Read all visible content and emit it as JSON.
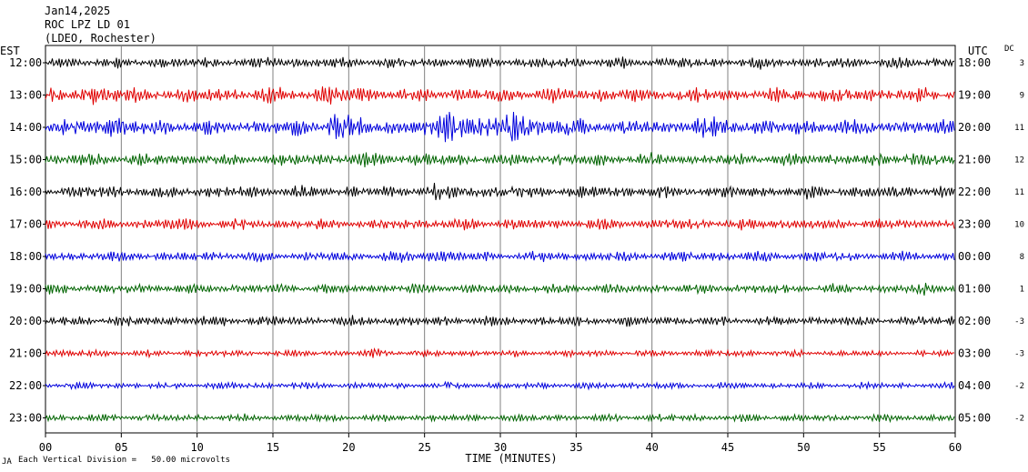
{
  "header": {
    "date": "Jan14,2025",
    "station": "ROC LPZ LD 01",
    "network": "(LDEO, Rochester)"
  },
  "left_tz": "EST",
  "right_tz": "UTC",
  "dc_header": "DC",
  "footer": {
    "corner": "JA",
    "scale": "Each Vertical Division =   50.00 microvolts"
  },
  "chart_data": {
    "type": "line",
    "xlabel": "TIME (MINUTES)",
    "xlim": [
      0,
      60
    ],
    "x_ticks": [
      "00",
      "05",
      "10",
      "15",
      "20",
      "25",
      "30",
      "35",
      "40",
      "45",
      "50",
      "55",
      "60"
    ],
    "colors": [
      "#000000",
      "#e00000",
      "#0000dd",
      "#006400"
    ],
    "rows": [
      {
        "est": "12:00",
        "utc": "18:00",
        "dc": "3",
        "amp": 0.9,
        "events": [
          [
            14.6,
            1.3
          ],
          [
            24.5,
            0.9
          ],
          [
            31.5,
            0.9
          ]
        ]
      },
      {
        "est": "13:00",
        "utc": "19:00",
        "dc": "9",
        "amp": 1.2,
        "events": [
          [
            2.8,
            2.1
          ],
          [
            18.2,
            1.7
          ],
          [
            28.5,
            1.0
          ],
          [
            36.5,
            1.2
          ]
        ]
      },
      {
        "est": "14:00",
        "utc": "20:00",
        "dc": "11",
        "amp": 1.3,
        "events": [
          [
            3.5,
            2.0
          ],
          [
            18.9,
            3.0
          ],
          [
            26.5,
            4.0
          ],
          [
            30.5,
            3.0
          ],
          [
            43.0,
            1.8
          ]
        ]
      },
      {
        "est": "15:00",
        "utc": "21:00",
        "dc": "12",
        "amp": 1.0,
        "events": [
          [
            20.6,
            1.6
          ],
          [
            25.7,
            1.1
          ],
          [
            56.8,
            1.5
          ]
        ]
      },
      {
        "est": "16:00",
        "utc": "22:00",
        "dc": "11",
        "amp": 1.0,
        "events": [
          [
            20.2,
            1.1
          ],
          [
            25.6,
            1.6
          ],
          [
            56.8,
            1.1
          ]
        ]
      },
      {
        "est": "17:00",
        "utc": "23:00",
        "dc": "10",
        "amp": 0.9,
        "events": [
          [
            8.0,
            1.3
          ],
          [
            25.0,
            1.2
          ],
          [
            35.0,
            1.1
          ]
        ]
      },
      {
        "est": "18:00",
        "utc": "00:00",
        "dc": "8",
        "amp": 0.8,
        "events": [
          [
            10.5,
            1.0
          ],
          [
            22.7,
            1.3
          ],
          [
            25.0,
            1.9
          ],
          [
            46.2,
            1.2
          ]
        ]
      },
      {
        "est": "19:00",
        "utc": "01:00",
        "dc": "1",
        "amp": 0.8,
        "events": [
          [
            20.0,
            1.0
          ],
          [
            57.5,
            1.5
          ]
        ]
      },
      {
        "est": "20:00",
        "utc": "02:00",
        "dc": "-3",
        "amp": 0.8,
        "events": [
          [
            11.8,
            1.1
          ],
          [
            28.3,
            1.0
          ],
          [
            59.8,
            1.2
          ]
        ]
      },
      {
        "est": "21:00",
        "utc": "03:00",
        "dc": "-3",
        "amp": 0.55,
        "events": [
          [
            21.5,
            1.6
          ]
        ]
      },
      {
        "est": "22:00",
        "utc": "04:00",
        "dc": "-2",
        "amp": 0.55,
        "events": [
          [
            19.0,
            1.0
          ]
        ]
      },
      {
        "est": "23:00",
        "utc": "05:00",
        "dc": "-2",
        "amp": 0.6,
        "events": [
          [
            35.5,
            1.0
          ]
        ]
      }
    ]
  }
}
